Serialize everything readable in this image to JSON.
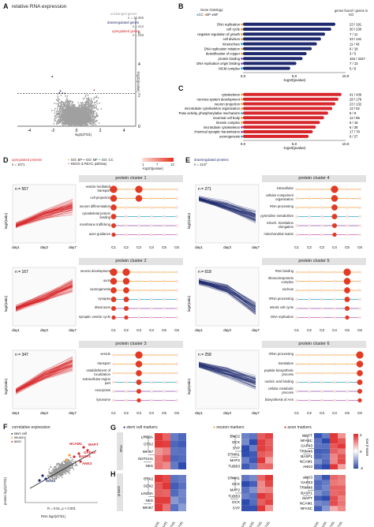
{
  "panelA": {
    "label": "A",
    "title": "relative RNA expression",
    "legend": {
      "unchanged": "unchanged genes",
      "unchanged_n": "n = 13.388",
      "down": "downregulated genes",
      "down_n": "n = 614",
      "up": "upregulated genes",
      "up_n": "n = 549"
    },
    "xlabel": "log2(d7/d1)",
    "ylabel": "-log10(pvalue)",
    "xticks": [
      "-4",
      "-2",
      "0",
      "2",
      "4"
    ],
    "yticks": [
      "0",
      "2",
      "4",
      "6"
    ]
  },
  "panelB": {
    "label": "B",
    "legend_title": "Gene Ontology:",
    "legend_items": [
      "CC",
      "BP",
      "MF"
    ],
    "header": "genes found / genes in GO",
    "xlabel": "-log10(pvalue)",
    "xticks": [
      "0.0",
      "5.0",
      "10.0"
    ],
    "terms": [
      {
        "name": "DNA replication",
        "count": "23 / 191",
        "value": 9.0
      },
      {
        "name": "cell cycle",
        "count": "30 / 230",
        "value": 8.6
      },
      {
        "name": "negative regulation of growth",
        "count": "7 / 11",
        "value": 8.0
      },
      {
        "name": "cell division",
        "count": "23 / 141",
        "value": 7.6
      },
      {
        "name": "kinetochore",
        "count": "11 / 43",
        "value": 7.2
      },
      {
        "name": "DNA replication initiation",
        "count": "6 / 18",
        "value": 6.7
      },
      {
        "name": "detoxification of copper",
        "count": "3 / 5",
        "value": 6.2
      },
      {
        "name": "protein binding",
        "count": "164 / 3427",
        "value": 5.8
      },
      {
        "name": "DNA replication origin binding",
        "count": "7 / 13",
        "value": 5.2
      },
      {
        "name": "MCM complex",
        "count": "5 / 6",
        "value": 4.6
      }
    ]
  },
  "panelC": {
    "label": "C",
    "xlabel": "-log10(pvalue)",
    "xticks": [
      "0.0",
      "5.0",
      "10.0"
    ],
    "terms": [
      {
        "name": "cytoskeleton",
        "count": "41 / 436",
        "value": 9.6
      },
      {
        "name": "nervous system development",
        "count": "28 / 176",
        "value": 9.3
      },
      {
        "name": "neuron projection",
        "count": "23 / 132",
        "value": 9.0
      },
      {
        "name": "microtubule cytoskeleton organization",
        "count": "12 / 52",
        "value": 8.7
      },
      {
        "name": "protein-exporting ATPase activity, phosphorylative mechanism",
        "count": "5 / 9",
        "value": 8.3
      },
      {
        "name": "neuronal cell body",
        "count": "12 / 86",
        "value": 7.9
      },
      {
        "name": "kinesin complex",
        "count": "5 / 16",
        "value": 7.5
      },
      {
        "name": "microtubule cytoskeleton",
        "count": "6 / 28",
        "value": 7.1
      },
      {
        "name": "chemical synaptic transmission",
        "count": "17 / 78",
        "value": 6.8
      },
      {
        "name": "axonogenesis",
        "count": "6 / 27",
        "value": 6.4
      }
    ]
  },
  "panelD": {
    "label": "D",
    "title": "upregulated proteins",
    "n": "n = 1071",
    "legend": [
      "GO: BP",
      "GO: MF",
      "GO: CC",
      "KEGG & REAC pathway"
    ],
    "scale_label": "-log10(pvalue)",
    "scale_ticks": [
      "1",
      "7",
      "13"
    ],
    "clusters": [
      {
        "title": "protein cluster 1",
        "n": "n = 557",
        "terms": [
          "vesicle-mediated transport",
          "cell projection",
          "neuron differentiation",
          "cytoskeletal protein binding",
          "membrane trafficking",
          "axon guidance"
        ]
      },
      {
        "title": "protein cluster 2",
        "n": "n = 167",
        "terms": [
          "neuron development",
          "axon",
          "axonogenesis",
          "synapse",
          "distal axon",
          "synaptic vesicle cycle"
        ]
      },
      {
        "title": "protein cluster 3",
        "n": "n = 347",
        "terms": [
          "vesicle",
          "transport",
          "establishment of localization",
          "extracellular region part",
          "exocytosis",
          "lysosome"
        ]
      }
    ]
  },
  "panelE": {
    "label": "E",
    "title": "downregulated proteins",
    "n": "n = 1147",
    "clusters": [
      {
        "title": "protein cluster 4",
        "n": "n = 271",
        "terms": [
          "intracellular",
          "cellular component organization",
          "RNA processing",
          "pyrimidine metabolism",
          "mitoch. translation elongation",
          "mitochondrial matrix"
        ]
      },
      {
        "title": "protein cluster 5",
        "n": "n = 618",
        "terms": [
          "RNA binding",
          "ribonucleoprotein complex",
          "nucleus",
          "rRNA processing",
          "mitotic cell cycle",
          "DNA replication"
        ]
      },
      {
        "title": "protein cluster 6",
        "n": "n = 258",
        "terms": [
          "rRNA processing",
          "translation",
          "peptide biosynthetic process",
          "nucleic acid binding",
          "cellular metabolic process",
          "biosynthesis of AAs"
        ]
      }
    ]
  },
  "shared": {
    "ylabel": "log2(ratio)",
    "xticks": [
      "day1",
      "day3",
      "day7"
    ],
    "cols": [
      "C1",
      "C2",
      "C3",
      "C4",
      "C5",
      "C6"
    ]
  },
  "panelF": {
    "label": "F",
    "title": "correlative expression",
    "legend": [
      "stem cell",
      "neuron",
      "axon"
    ],
    "xlabel": "RNA log2(d7/d1)",
    "ylabel": "protein log2(d7/d1)",
    "stat": "R = 0.51, p < 0.001",
    "genes": [
      "NCAM1",
      "MAPT",
      "GAP43",
      "BASP1",
      "ANK3",
      "SOX2"
    ]
  },
  "panelG": {
    "label": "G",
    "headers": [
      "stem cell markers",
      "neuron markers",
      "axon markers"
    ],
    "row_label": "RNA",
    "stem": [
      "LIN28A",
      "OTX2",
      "MKI67",
      "NOTCH1",
      "NES"
    ],
    "neuron": [
      "ENO2",
      "DCX",
      "SYP",
      "STMN1",
      "MAP2",
      "TUBB3"
    ],
    "axon": [
      "MAPT",
      "NFASC",
      "GAP43",
      "TRIM46",
      "BASP1",
      "NCAM1",
      "ANK3"
    ],
    "scale_ticks": [
      "2",
      "0",
      "-2"
    ],
    "scale_label": "row Z-score"
  },
  "panelH": {
    "label": "H",
    "row_label": "protein",
    "stem": [
      "OTX2",
      "SOX2",
      "LIN28A",
      "NES",
      "MKI67"
    ],
    "neuron": [
      "STMN1",
      "DCX",
      "MAP2",
      "TUBB3",
      "DCX",
      "SYP"
    ],
    "axon": [
      "ANK3",
      "GAP43",
      "TRIM46",
      "BASP1",
      "MAPT",
      "NCAM1",
      "NFASC"
    ],
    "xticks": [
      "d1/d1",
      "d1/d1",
      "d7/d1",
      "d7/d1"
    ]
  },
  "colors": {
    "up": "#d7262b",
    "down": "#1f2a6e",
    "gray": "#a0a0a0",
    "cc": "#2aa6c9",
    "bp": "#f0a030",
    "mf": "#8d4fb0",
    "kegg": "#c060c0"
  }
}
